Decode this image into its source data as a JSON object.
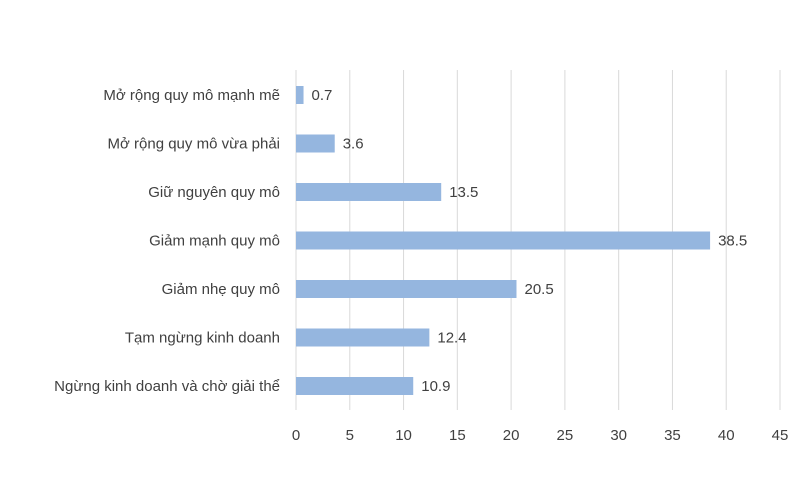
{
  "chart_data": {
    "type": "bar",
    "orientation": "horizontal",
    "categories": [
      "Mở rộng quy mô mạnh mẽ",
      "Mở rộng quy mô vừa phải",
      "Giữ nguyên quy mô",
      "Giảm mạnh quy mô",
      "Giảm nhẹ quy mô",
      "Tạm ngừng kinh doanh",
      "Ngừng kinh doanh và chờ giải thể"
    ],
    "values": [
      0.7,
      3.6,
      13.5,
      38.5,
      20.5,
      12.4,
      10.9
    ],
    "value_labels": [
      "0.7",
      "3.6",
      "13.5",
      "38.5",
      "20.5",
      "12.4",
      "10.9"
    ],
    "xlim": [
      0,
      45
    ],
    "xticks": [
      "0",
      "5",
      "10",
      "15",
      "20",
      "25",
      "30",
      "35",
      "40",
      "45"
    ],
    "title": "",
    "xlabel": "",
    "ylabel": "",
    "grid": true,
    "legend": "none",
    "bar_color": "#95b6df",
    "grid_color": "#d9d9d9",
    "text_color": "#404040"
  }
}
